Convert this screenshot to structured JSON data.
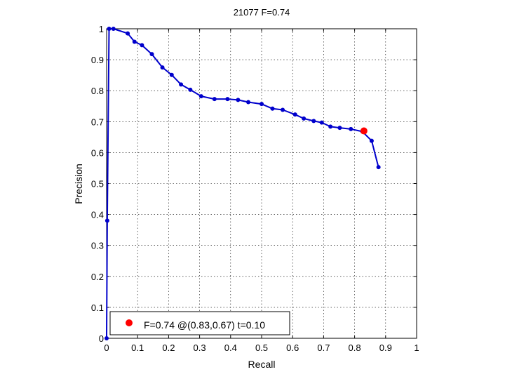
{
  "chart_data": {
    "type": "line",
    "title": "21077 F=0.74",
    "xlabel": "Recall",
    "ylabel": "Precision",
    "xlim": [
      0,
      1
    ],
    "ylim": [
      0,
      1
    ],
    "xticks": [
      "0",
      "0.1",
      "0.2",
      "0.3",
      "0.4",
      "0.5",
      "0.6",
      "0.7",
      "0.8",
      "0.9",
      "1"
    ],
    "yticks": [
      "0",
      "0.1",
      "0.2",
      "0.3",
      "0.4",
      "0.5",
      "0.6",
      "0.7",
      "0.8",
      "0.9",
      "1"
    ],
    "grid": true,
    "series": [
      {
        "color": "#0000cc",
        "marker": "dot",
        "x": [
          0.0,
          0.002,
          0.008,
          0.022,
          0.068,
          0.09,
          0.114,
          0.146,
          0.18,
          0.21,
          0.24,
          0.27,
          0.305,
          0.348,
          0.39,
          0.424,
          0.457,
          0.5,
          0.535,
          0.568,
          0.608,
          0.636,
          0.668,
          0.694,
          0.722,
          0.752,
          0.788,
          0.825,
          0.855,
          0.877
        ],
        "y": [
          0.0,
          0.38,
          1.0,
          1.0,
          0.985,
          0.958,
          0.947,
          0.918,
          0.875,
          0.851,
          0.82,
          0.803,
          0.782,
          0.773,
          0.773,
          0.77,
          0.763,
          0.757,
          0.742,
          0.738,
          0.723,
          0.71,
          0.702,
          0.697,
          0.684,
          0.68,
          0.676,
          0.668,
          0.638,
          0.553
        ]
      }
    ],
    "best_point": {
      "x": 0.83,
      "y": 0.67,
      "color": "#ff0000"
    },
    "legend": {
      "position": "bottom-left",
      "label": "F=0.74 @(0.83,0.67) t=0.10",
      "marker_color": "#ff0000"
    }
  }
}
